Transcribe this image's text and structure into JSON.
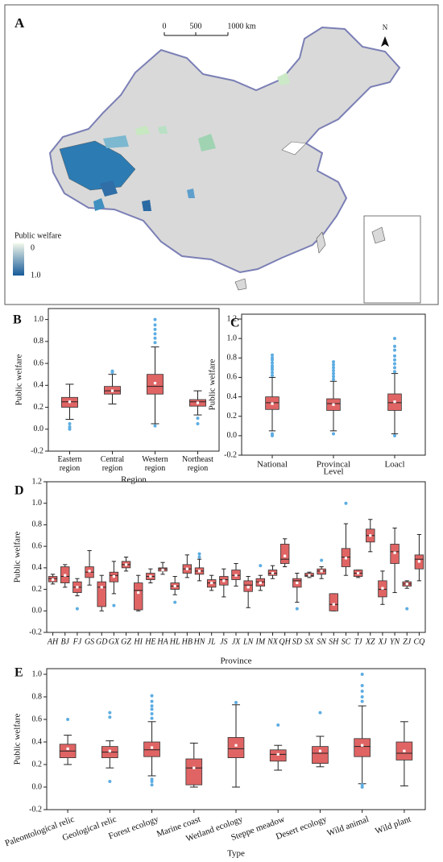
{
  "map": {
    "label": "A",
    "scale_labels": [
      "0",
      "500",
      "1000 km"
    ],
    "north": "N",
    "legend_title": "Public welfare",
    "legend_labels": [
      "0",
      "1.0"
    ],
    "colormap": [
      "#f1f8ea",
      "#175a9a"
    ],
    "land_color": "#d9d9d9"
  },
  "chart_data": [
    {
      "type": "box",
      "label": "B",
      "ylabel": "Public welfare",
      "xlabel": "Region",
      "box_color": "#e06464",
      "flier_color": "#5dade2",
      "ylim": [
        -0.2,
        1.1
      ],
      "yticks": [
        -0.2,
        {
          "value": 0,
          "label": "0.0"
        },
        0.2,
        0.4,
        0.6,
        0.8,
        {
          "value": 1,
          "label": "1.0"
        }
      ],
      "categories": [
        "Eastern region",
        "Central region",
        "Western region",
        "Northeast region"
      ],
      "boxes": [
        {
          "whislo": 0.09,
          "q1": 0.2,
          "med": 0.25,
          "q3": 0.29,
          "whishi": 0.41,
          "mean": 0.25,
          "fliers": [
            0.0,
            0.02,
            0.05
          ]
        },
        {
          "whislo": 0.23,
          "q1": 0.32,
          "med": 0.35,
          "q3": 0.39,
          "whishi": 0.5,
          "mean": 0.35,
          "fliers": [
            0.52,
            0.53
          ]
        },
        {
          "whislo": 0.05,
          "q1": 0.32,
          "med": 0.39,
          "q3": 0.5,
          "whishi": 0.75,
          "mean": 0.42,
          "fliers": [
            0.03,
            0.79,
            0.83,
            0.87,
            0.91,
            0.95,
            1.0
          ]
        },
        {
          "whislo": 0.13,
          "q1": 0.21,
          "med": 0.25,
          "q3": 0.27,
          "whishi": 0.35,
          "mean": 0.24,
          "fliers": [
            0.05,
            0.1
          ]
        }
      ]
    },
    {
      "type": "box",
      "label": "C",
      "ylabel": "Public welfare",
      "xlabel": "Level",
      "box_color": "#e06464",
      "flier_color": "#5dade2",
      "ylim": [
        -0.2,
        1.25
      ],
      "yticks": [
        -0.2,
        {
          "value": 0,
          "label": "0.0"
        },
        0.2,
        0.4,
        0.6,
        0.8,
        {
          "value": 1,
          "label": "1.0"
        },
        1.2
      ],
      "categories": [
        "National",
        "Provincal",
        "Loacl"
      ],
      "boxes": [
        {
          "whislo": 0.05,
          "q1": 0.27,
          "med": 0.34,
          "q3": 0.4,
          "whishi": 0.6,
          "mean": 0.33,
          "fliers": [
            0.0,
            0.02,
            0.62,
            0.65,
            0.68,
            0.7,
            0.72,
            0.75,
            0.78,
            0.8,
            0.83
          ]
        },
        {
          "whislo": 0.05,
          "q1": 0.26,
          "med": 0.33,
          "q3": 0.38,
          "whishi": 0.56,
          "mean": 0.32,
          "fliers": [
            0.02,
            0.58,
            0.61,
            0.64,
            0.67,
            0.7,
            0.73,
            0.76
          ]
        },
        {
          "whislo": 0.02,
          "q1": 0.26,
          "med": 0.34,
          "q3": 0.43,
          "whishi": 0.64,
          "mean": 0.35,
          "fliers": [
            0.0,
            0.66,
            0.7,
            0.74,
            0.78,
            0.82,
            0.88,
            0.92,
            1.0
          ]
        }
      ]
    },
    {
      "type": "box",
      "label": "D",
      "ylabel": "Public welfare",
      "xlabel": "Province",
      "box_color": "#e06464",
      "flier_color": "#5dade2",
      "ylim": [
        -0.2,
        1.2
      ],
      "yticks": [
        -0.2,
        {
          "value": 0,
          "label": "0.0"
        },
        0.2,
        0.4,
        0.6,
        0.8,
        {
          "value": 1,
          "label": "1.0"
        },
        1.2
      ],
      "categories": [
        "AH",
        "BJ",
        "FJ",
        "GS",
        "GD",
        "GX",
        "GZ",
        "HI",
        "HE",
        "HA",
        "HL",
        "HB",
        "HN",
        "JL",
        "JS",
        "JX",
        "LN",
        "IM",
        "NX",
        "QH",
        "SD",
        "SX",
        "SN",
        "SH",
        "SC",
        "TJ",
        "XZ",
        "XJ",
        "YN",
        "ZJ",
        "CQ"
      ],
      "boxes": [
        {
          "whislo": 0.25,
          "q1": 0.27,
          "med": 0.3,
          "q3": 0.32,
          "whishi": 0.34,
          "mean": 0.29,
          "fliers": []
        },
        {
          "whislo": 0.22,
          "q1": 0.26,
          "med": 0.32,
          "q3": 0.41,
          "whishi": 0.43,
          "mean": 0.33,
          "fliers": []
        },
        {
          "whislo": 0.14,
          "q1": 0.17,
          "med": 0.22,
          "q3": 0.27,
          "whishi": 0.3,
          "mean": 0.22,
          "fliers": [
            0.02
          ]
        },
        {
          "whislo": 0.24,
          "q1": 0.31,
          "med": 0.36,
          "q3": 0.41,
          "whishi": 0.56,
          "mean": 0.37,
          "fliers": []
        },
        {
          "whislo": 0.0,
          "q1": 0.04,
          "med": 0.22,
          "q3": 0.27,
          "whishi": 0.33,
          "mean": 0.22,
          "fliers": []
        },
        {
          "whislo": 0.16,
          "q1": 0.27,
          "med": 0.33,
          "q3": 0.36,
          "whishi": 0.46,
          "mean": 0.32,
          "fliers": [
            0.05
          ]
        },
        {
          "whislo": 0.37,
          "q1": 0.4,
          "med": 0.43,
          "q3": 0.46,
          "whishi": 0.5,
          "mean": 0.43,
          "fliers": []
        },
        {
          "whislo": 0.0,
          "q1": 0.01,
          "med": 0.19,
          "q3": 0.26,
          "whishi": 0.33,
          "mean": 0.17,
          "fliers": []
        },
        {
          "whislo": 0.26,
          "q1": 0.29,
          "med": 0.32,
          "q3": 0.35,
          "whishi": 0.39,
          "mean": 0.32,
          "fliers": []
        },
        {
          "whislo": 0.34,
          "q1": 0.37,
          "med": 0.39,
          "q3": 0.4,
          "whishi": 0.45,
          "mean": 0.38,
          "fliers": []
        },
        {
          "whislo": 0.15,
          "q1": 0.2,
          "med": 0.23,
          "q3": 0.26,
          "whishi": 0.32,
          "mean": 0.23,
          "fliers": [
            0.08
          ]
        },
        {
          "whislo": 0.31,
          "q1": 0.35,
          "med": 0.39,
          "q3": 0.43,
          "whishi": 0.52,
          "mean": 0.39,
          "fliers": []
        },
        {
          "whislo": 0.28,
          "q1": 0.34,
          "med": 0.37,
          "q3": 0.4,
          "whishi": 0.48,
          "mean": 0.37,
          "fliers": [
            0.5,
            0.53
          ]
        },
        {
          "whislo": 0.19,
          "q1": 0.22,
          "med": 0.26,
          "q3": 0.29,
          "whishi": 0.33,
          "mean": 0.26,
          "fliers": []
        },
        {
          "whislo": 0.13,
          "q1": 0.24,
          "med": 0.29,
          "q3": 0.32,
          "whishi": 0.39,
          "mean": 0.28,
          "fliers": []
        },
        {
          "whislo": 0.23,
          "q1": 0.29,
          "med": 0.33,
          "q3": 0.38,
          "whishi": 0.44,
          "mean": 0.33,
          "fliers": []
        },
        {
          "whislo": 0.03,
          "q1": 0.18,
          "med": 0.24,
          "q3": 0.28,
          "whishi": 0.32,
          "mean": 0.22,
          "fliers": []
        },
        {
          "whislo": 0.19,
          "q1": 0.23,
          "med": 0.27,
          "q3": 0.3,
          "whishi": 0.33,
          "mean": 0.26,
          "fliers": [
            0.42
          ]
        },
        {
          "whislo": 0.3,
          "q1": 0.33,
          "med": 0.35,
          "q3": 0.38,
          "whishi": 0.42,
          "mean": 0.35,
          "fliers": []
        },
        {
          "whislo": 0.41,
          "q1": 0.44,
          "med": 0.48,
          "q3": 0.62,
          "whishi": 0.67,
          "mean": 0.51,
          "fliers": []
        },
        {
          "whislo": 0.08,
          "q1": 0.22,
          "med": 0.28,
          "q3": 0.3,
          "whishi": 0.35,
          "mean": 0.26,
          "fliers": [
            0.02
          ]
        },
        {
          "whislo": 0.31,
          "q1": 0.32,
          "med": 0.33,
          "q3": 0.35,
          "whishi": 0.36,
          "mean": 0.33,
          "fliers": []
        },
        {
          "whislo": 0.3,
          "q1": 0.34,
          "med": 0.37,
          "q3": 0.39,
          "whishi": 0.41,
          "mean": 0.37,
          "fliers": [
            0.47
          ]
        },
        {
          "whislo": 0.0,
          "q1": 0.0,
          "med": 0.06,
          "q3": 0.16,
          "whishi": 0.16,
          "mean": 0.06,
          "fliers": []
        },
        {
          "whislo": 0.33,
          "q1": 0.41,
          "med": 0.5,
          "q3": 0.58,
          "whishi": 0.81,
          "mean": 0.49,
          "fliers": [
            1.0
          ]
        },
        {
          "whislo": 0.31,
          "q1": 0.32,
          "med": 0.35,
          "q3": 0.38,
          "whishi": 0.38,
          "mean": 0.35,
          "fliers": []
        },
        {
          "whislo": 0.55,
          "q1": 0.64,
          "med": 0.7,
          "q3": 0.76,
          "whishi": 0.85,
          "mean": 0.7,
          "fliers": []
        },
        {
          "whislo": 0.06,
          "q1": 0.13,
          "med": 0.2,
          "q3": 0.28,
          "whishi": 0.37,
          "mean": 0.21,
          "fliers": []
        },
        {
          "whislo": 0.17,
          "q1": 0.44,
          "med": 0.55,
          "q3": 0.62,
          "whishi": 0.77,
          "mean": 0.54,
          "fliers": []
        },
        {
          "whislo": 0.21,
          "q1": 0.23,
          "med": 0.25,
          "q3": 0.27,
          "whishi": 0.28,
          "mean": 0.25,
          "fliers": [
            0.02
          ]
        },
        {
          "whislo": 0.28,
          "q1": 0.39,
          "med": 0.48,
          "q3": 0.52,
          "whishi": 0.71,
          "mean": 0.46,
          "fliers": []
        }
      ]
    },
    {
      "type": "box",
      "label": "E",
      "ylabel": "Public welfare",
      "xlabel": "Type",
      "box_color": "#e06464",
      "flier_color": "#5dade2",
      "ylim": [
        -0.2,
        1.05
      ],
      "yticks": [
        -0.2,
        {
          "value": 0,
          "label": "0.0"
        },
        0.2,
        0.4,
        0.6,
        0.8,
        {
          "value": 1,
          "label": "1.0"
        }
      ],
      "categories": [
        "Paleontological relic",
        "Geological relic",
        "Forest ecology",
        "Marine coast",
        "Wetland ecology",
        "Steppe meadow",
        "Desert ecology",
        "Wild animal",
        "Wild plant"
      ],
      "boxes": [
        {
          "whislo": 0.2,
          "q1": 0.26,
          "med": 0.32,
          "q3": 0.38,
          "whishi": 0.46,
          "mean": 0.34,
          "fliers": [
            0.6
          ]
        },
        {
          "whislo": 0.17,
          "q1": 0.26,
          "med": 0.31,
          "q3": 0.36,
          "whishi": 0.41,
          "mean": 0.32,
          "fliers": [
            0.05,
            0.62,
            0.66
          ]
        },
        {
          "whislo": 0.1,
          "q1": 0.27,
          "med": 0.33,
          "q3": 0.4,
          "whishi": 0.58,
          "mean": 0.35,
          "fliers": [
            0.02,
            0.05,
            0.07,
            0.61,
            0.65,
            0.69,
            0.72,
            0.76,
            0.81
          ]
        },
        {
          "whislo": 0.0,
          "q1": 0.02,
          "med": 0.17,
          "q3": 0.25,
          "whishi": 0.39,
          "mean": 0.17,
          "fliers": []
        },
        {
          "whislo": 0.0,
          "q1": 0.26,
          "med": 0.34,
          "q3": 0.44,
          "whishi": 0.73,
          "mean": 0.37,
          "fliers": [
            0.75
          ]
        },
        {
          "whislo": 0.15,
          "q1": 0.23,
          "med": 0.29,
          "q3": 0.33,
          "whishi": 0.37,
          "mean": 0.29,
          "fliers": [
            0.55
          ]
        },
        {
          "whislo": 0.18,
          "q1": 0.21,
          "med": 0.3,
          "q3": 0.36,
          "whishi": 0.45,
          "mean": 0.32,
          "fliers": [
            0.66
          ]
        },
        {
          "whislo": 0.03,
          "q1": 0.27,
          "med": 0.36,
          "q3": 0.43,
          "whishi": 0.72,
          "mean": 0.37,
          "fliers": [
            0.0,
            0.02,
            0.76,
            0.8,
            0.85,
            0.9,
            1.0
          ]
        },
        {
          "whislo": 0.01,
          "q1": 0.24,
          "med": 0.3,
          "q3": 0.4,
          "whishi": 0.58,
          "mean": 0.32,
          "fliers": []
        }
      ]
    }
  ]
}
